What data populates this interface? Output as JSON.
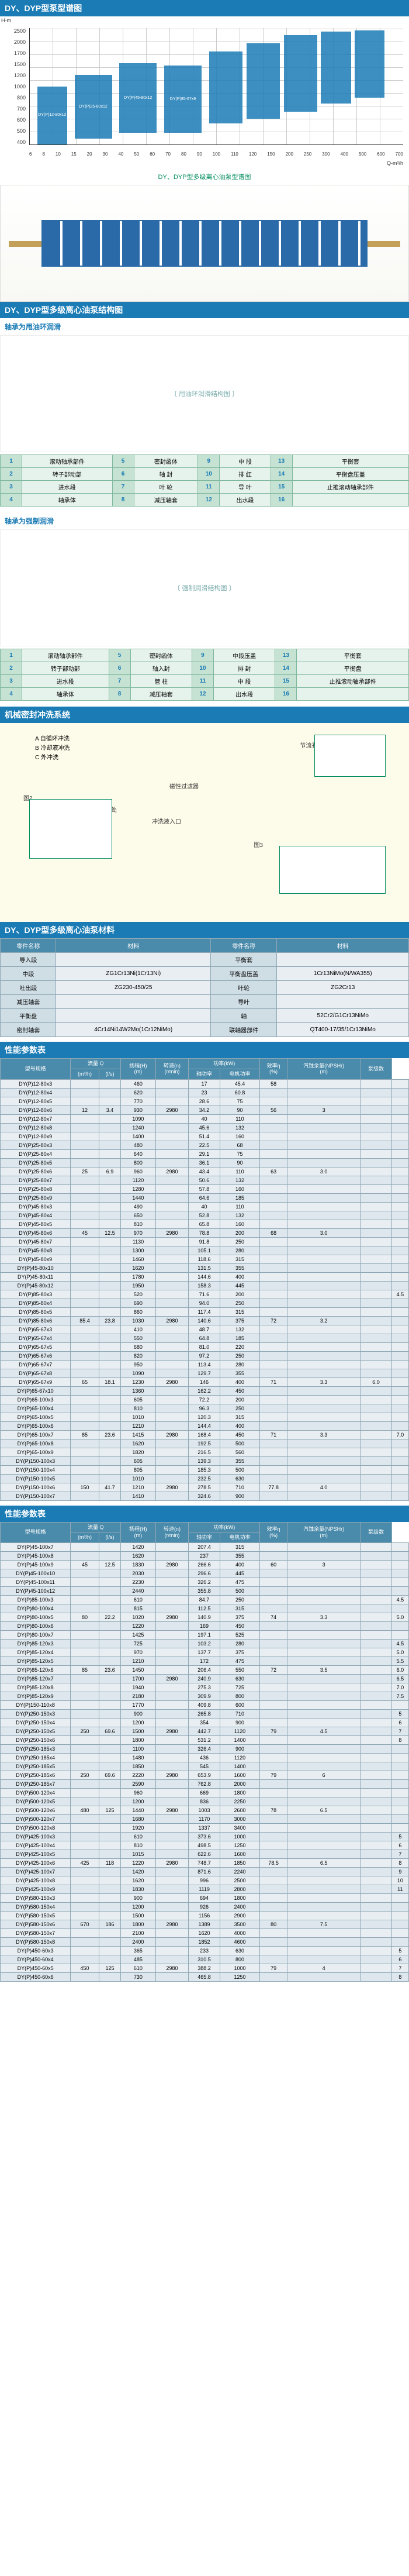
{
  "sections": {
    "chart_title": "DY、DYP型泵型谱图",
    "chart_caption": "DY、DYP型多级离心油泵型谱图",
    "structure_title": "DY、DYP型多级离心油泵结构图",
    "sub_oilring": "轴承为甩油环润滑",
    "sub_force": "轴承为强制润滑",
    "flush_title": "机械密封冲洗系统",
    "material_title": "DY、DYP型多级离心油泵材料",
    "perf_title": "性能参数表"
  },
  "chart": {
    "y_label": "H-m",
    "x_label": "Q-m³/h",
    "y_ticks": [
      "400",
      "500",
      "600",
      "700",
      "800",
      "1000",
      "1200",
      "1500",
      "1700",
      "2000",
      "2500"
    ],
    "x_ticks": [
      "6",
      "8",
      "10",
      "15",
      "20",
      "30",
      "40",
      "50",
      "60",
      "70",
      "80",
      "90",
      "100",
      "110",
      "120",
      "150",
      "200",
      "250",
      "300",
      "400",
      "500",
      "600",
      "700"
    ],
    "blocks": [
      {
        "label": "DY(P)12-80x12",
        "l": 2,
        "w": 8,
        "b": 0,
        "h": 50
      },
      {
        "label": "DY(P)25-80x12",
        "l": 12,
        "w": 10,
        "b": 5,
        "h": 55
      },
      {
        "label": "DY(P)45-80x12",
        "l": 24,
        "w": 10,
        "b": 10,
        "h": 60
      },
      {
        "label": "DY(P)85-67x9",
        "l": 36,
        "w": 10,
        "b": 10,
        "h": 58
      },
      {
        "label": "",
        "l": 48,
        "w": 9,
        "b": 18,
        "h": 62
      },
      {
        "label": "",
        "l": 58,
        "w": 9,
        "b": 22,
        "h": 65
      },
      {
        "label": "",
        "l": 68,
        "w": 9,
        "b": 28,
        "h": 66
      },
      {
        "label": "",
        "l": 78,
        "w": 8,
        "b": 35,
        "h": 62
      },
      {
        "label": "",
        "l": 87,
        "w": 8,
        "b": 40,
        "h": 58
      }
    ]
  },
  "parts_oilring": [
    [
      "1",
      "滚动轴承部件",
      "5",
      "密封函体",
      "9",
      "中 段",
      "13",
      "平衡套"
    ],
    [
      "2",
      "转子部动部",
      "6",
      "轴 封",
      "10",
      "排 红",
      "14",
      "平衡盘压盖"
    ],
    [
      "3",
      "进水段",
      "7",
      "叶 轮",
      "11",
      "导 叶",
      "15",
      "止推滚动轴承部件"
    ],
    [
      "4",
      "轴承体",
      "8",
      "减压轴套",
      "12",
      "出水段",
      "16",
      ""
    ]
  ],
  "parts_force": [
    [
      "1",
      "滚动轴承部件",
      "5",
      "密封函体",
      "9",
      "中段压盖",
      "13",
      "平衡套"
    ],
    [
      "2",
      "转子部动部",
      "6",
      "轴入封",
      "10",
      "排 封",
      "14",
      "平衡盘"
    ],
    [
      "3",
      "进水段",
      "7",
      "管 柱",
      "11",
      "中 段",
      "15",
      "止推滚动轴承部件"
    ],
    [
      "4",
      "轴承体",
      "8",
      "减压轴套",
      "12",
      "出水段",
      "16",
      ""
    ]
  ],
  "flush_legend": [
    "A  自循环冲洗",
    "B  冷却液冲洗",
    "C  外冲洗"
  ],
  "flush_labels": {
    "fig1": "图1",
    "fig2": "图2",
    "fig3": "图3",
    "flange": "冲洗液入口第一级叶轮进口处",
    "filter": "磁性过滤器",
    "cooler": "冷却器",
    "inlet": "冲洗液入口",
    "orifice": "节流孔板(自循环冲洗系统用)"
  },
  "materials": {
    "header": [
      "零件名称",
      "材料",
      "零件名称",
      "材料"
    ],
    "rows": [
      [
        "导入段",
        "",
        "平衡套",
        ""
      ],
      [
        "中段",
        "ZG1Cr13Ni(1Cr13Ni)",
        "平衡盘压盖",
        "1Cr13NiMo(N/WA355)"
      ],
      [
        "吐出段",
        "ZG230-450/25",
        "叶轮",
        "ZG2Cr13"
      ],
      [
        "减压轴套",
        "",
        "导叶",
        ""
      ],
      [
        "平衡盘",
        "",
        "轴",
        "52Cr2/G1Cr13NiMo"
      ],
      [
        "密封轴套",
        "4Cr14Ni14W2Mo(1Cr12NiMo)",
        "联轴器部件",
        "QT400-17/35/1Cr13NiMo"
      ]
    ]
  },
  "perf_headers": {
    "model": "型号规格",
    "flow": "流量 Q",
    "flow_u1": "(m³/h)",
    "flow_u2": "(l/s)",
    "lift": "扬程(H)",
    "lift_u": "(m)",
    "speed": "转速(n)",
    "speed_u": "(r/min)",
    "power": "功率(kW)",
    "power_a": "轴功率",
    "power_m": "电机功率",
    "eff": "效率η",
    "eff_u": "(%)",
    "npsh": "汽蚀余量(NPSHr)",
    "npsh_u": "(m)",
    "stages": "泵级数"
  },
  "perf1": [
    [
      "DY(P)12-80x3",
      "",
      "",
      "460",
      "",
      "17",
      "45.4",
      "58",
      "",
      "",
      ""
    ],
    [
      "DY(P)12-80x4",
      "",
      "",
      "620",
      "",
      "23",
      "60.8",
      "",
      "",
      "",
      ""
    ],
    [
      "DY(P)12-80x5",
      "",
      "",
      "770",
      "",
      "28.6",
      "75",
      "",
      "",
      "",
      ""
    ],
    [
      "DY(P)12-80x6",
      "12",
      "3.4",
      "930",
      "2980",
      "34.2",
      "90",
      "56",
      "3",
      "",
      ""
    ],
    [
      "DY(P)12-80x7",
      "",
      "",
      "1090",
      "",
      "40",
      "110",
      "",
      "",
      "",
      ""
    ],
    [
      "DY(P)12-80x8",
      "",
      "",
      "1240",
      "",
      "45.6",
      "132",
      "",
      "",
      "",
      ""
    ],
    [
      "DY(P)12-80x9",
      "",
      "",
      "1400",
      "",
      "51.4",
      "160",
      "",
      "",
      "",
      ""
    ],
    [
      "DY(P)25-80x3",
      "",
      "",
      "480",
      "",
      "22.5",
      "68",
      "",
      "",
      "",
      ""
    ],
    [
      "DY(P)25-80x4",
      "",
      "",
      "640",
      "",
      "29.1",
      "75",
      "",
      "",
      "",
      ""
    ],
    [
      "DY(P)25-80x5",
      "",
      "",
      "800",
      "",
      "36.1",
      "90",
      "",
      "",
      "",
      ""
    ],
    [
      "DY(P)25-80x6",
      "25",
      "6.9",
      "960",
      "2980",
      "43.4",
      "110",
      "63",
      "3.0",
      "",
      ""
    ],
    [
      "DY(P)25-80x7",
      "",
      "",
      "1120",
      "",
      "50.6",
      "132",
      "",
      "",
      "",
      ""
    ],
    [
      "DY(P)25-80x8",
      "",
      "",
      "1280",
      "",
      "57.8",
      "160",
      "",
      "",
      "",
      ""
    ],
    [
      "DY(P)25-80x9",
      "",
      "",
      "1440",
      "",
      "64.6",
      "185",
      "",
      "",
      "",
      ""
    ],
    [
      "DY(P)45-80x3",
      "",
      "",
      "490",
      "",
      "40",
      "110",
      "",
      "",
      "",
      ""
    ],
    [
      "DY(P)45-80x4",
      "",
      "",
      "650",
      "",
      "52.8",
      "132",
      "",
      "",
      "",
      ""
    ],
    [
      "DY(P)45-80x5",
      "",
      "",
      "810",
      "",
      "65.8",
      "160",
      "",
      "",
      "",
      ""
    ],
    [
      "DY(P)45-80x6",
      "45",
      "12.5",
      "970",
      "2980",
      "78.8",
      "200",
      "68",
      "3.0",
      "",
      ""
    ],
    [
      "DY(P)45-80x7",
      "",
      "",
      "1130",
      "",
      "91.8",
      "250",
      "",
      "",
      "",
      ""
    ],
    [
      "DY(P)45-80x8",
      "",
      "",
      "1300",
      "",
      "105.1",
      "280",
      "",
      "",
      "",
      ""
    ],
    [
      "DY(P)45-80x9",
      "",
      "",
      "1460",
      "",
      "118.6",
      "315",
      "",
      "",
      "",
      ""
    ],
    [
      "DY(P)45-80x10",
      "",
      "",
      "1620",
      "",
      "131.5",
      "355",
      "",
      "",
      "",
      ""
    ],
    [
      "DY(P)45-80x11",
      "",
      "",
      "1780",
      "",
      "144.6",
      "400",
      "",
      "",
      "",
      ""
    ],
    [
      "DY(P)45-80x12",
      "",
      "",
      "1950",
      "",
      "158.3",
      "445",
      "",
      "",
      "",
      ""
    ],
    [
      "DY(P)85-80x3",
      "",
      "",
      "520",
      "",
      "71.6",
      "200",
      "",
      "",
      "",
      "4.5"
    ],
    [
      "DY(P)85-80x4",
      "",
      "",
      "690",
      "",
      "94.0",
      "250",
      "",
      "",
      "",
      ""
    ],
    [
      "DY(P)85-80x5",
      "",
      "",
      "860",
      "",
      "117.4",
      "315",
      "",
      "",
      "",
      ""
    ],
    [
      "DY(P)85-80x6",
      "85.4",
      "23.8",
      "1030",
      "2980",
      "140.6",
      "375",
      "72",
      "3.2",
      "",
      ""
    ],
    [
      "DY(P)65-67x3",
      "",
      "",
      "410",
      "",
      "48.7",
      "132",
      "",
      "",
      "",
      ""
    ],
    [
      "DY(P)65-67x4",
      "",
      "",
      "550",
      "",
      "64.8",
      "185",
      "",
      "",
      "",
      ""
    ],
    [
      "DY(P)65-67x5",
      "",
      "",
      "680",
      "",
      "81.0",
      "220",
      "",
      "",
      "",
      ""
    ],
    [
      "DY(P)65-67x6",
      "",
      "",
      "820",
      "",
      "97.2",
      "250",
      "",
      "",
      "",
      ""
    ],
    [
      "DY(P)65-67x7",
      "",
      "",
      "950",
      "",
      "113.4",
      "280",
      "",
      "",
      "",
      ""
    ],
    [
      "DY(P)65-67x8",
      "",
      "",
      "1090",
      "",
      "129.7",
      "355",
      "",
      "",
      "",
      ""
    ],
    [
      "DY(P)65-67x9",
      "65",
      "18.1",
      "1230",
      "2980",
      "146",
      "400",
      "71",
      "3.3",
      "6.0",
      ""
    ],
    [
      "DY(P)65-67x10",
      "",
      "",
      "1360",
      "",
      "162.2",
      "450",
      "",
      "",
      "",
      ""
    ],
    [
      "DY(P)65-100x3",
      "",
      "",
      "605",
      "",
      "72.2",
      "200",
      "",
      "",
      "",
      ""
    ],
    [
      "DY(P)65-100x4",
      "",
      "",
      "810",
      "",
      "96.3",
      "250",
      "",
      "",
      "",
      ""
    ],
    [
      "DY(P)65-100x5",
      "",
      "",
      "1010",
      "",
      "120.3",
      "315",
      "",
      "",
      "",
      ""
    ],
    [
      "DY(P)65-100x6",
      "",
      "",
      "1210",
      "",
      "144.4",
      "400",
      "",
      "",
      "",
      ""
    ],
    [
      "DY(P)65-100x7",
      "85",
      "23.6",
      "1415",
      "2980",
      "168.4",
      "450",
      "71",
      "3.3",
      "",
      "7.0"
    ],
    [
      "DY(P)65-100x8",
      "",
      "",
      "1620",
      "",
      "192.5",
      "500",
      "",
      "",
      "",
      ""
    ],
    [
      "DY(P)65-100x9",
      "",
      "",
      "1820",
      "",
      "216.5",
      "560",
      "",
      "",
      "",
      ""
    ],
    [
      "DY(P)150-100x3",
      "",
      "",
      "605",
      "",
      "139.3",
      "355",
      "",
      "",
      "",
      ""
    ],
    [
      "DY(P)150-100x4",
      "",
      "",
      "805",
      "",
      "185.3",
      "500",
      "",
      "",
      "",
      ""
    ],
    [
      "DY(P)150-100x5",
      "",
      "",
      "1010",
      "",
      "232.5",
      "630",
      "",
      "",
      "",
      ""
    ],
    [
      "DY(P)150-100x6",
      "150",
      "41.7",
      "1210",
      "2980",
      "278.5",
      "710",
      "77.8",
      "4.0",
      "",
      ""
    ],
    [
      "DY(P)150-100x7",
      "",
      "",
      "1410",
      "",
      "324.6",
      "900",
      "",
      "",
      "",
      ""
    ]
  ],
  "perf2": [
    [
      "DY(P)45-100x7",
      "",
      "",
      "1420",
      "",
      "207.4",
      "315",
      "",
      "",
      "",
      ""
    ],
    [
      "DY(P)45-100x8",
      "",
      "",
      "1620",
      "",
      "237",
      "355",
      "",
      "",
      "",
      ""
    ],
    [
      "DY(P)45-100x9",
      "45",
      "12.5",
      "1830",
      "2980",
      "266.6",
      "400",
      "60",
      "3",
      "",
      ""
    ],
    [
      "DY(P)45-100x10",
      "",
      "",
      "2030",
      "",
      "296.6",
      "445",
      "",
      "",
      "",
      ""
    ],
    [
      "DY(P)45-100x11",
      "",
      "",
      "2230",
      "",
      "326.2",
      "475",
      "",
      "",
      "",
      ""
    ],
    [
      "DY(P)45-100x12",
      "",
      "",
      "2440",
      "",
      "355.8",
      "500",
      "",
      "",
      "",
      ""
    ],
    [
      "DY(P)85-100x3",
      "",
      "",
      "610",
      "",
      "84.7",
      "250",
      "",
      "",
      "",
      "4.5"
    ],
    [
      "DY(P)80-100x4",
      "",
      "",
      "815",
      "",
      "112.5",
      "315",
      "",
      "",
      "",
      ""
    ],
    [
      "DY(P)80-100x5",
      "80",
      "22.2",
      "1020",
      "2980",
      "140.9",
      "375",
      "74",
      "3.3",
      "",
      "5.0"
    ],
    [
      "DY(P)80-100x6",
      "",
      "",
      "1220",
      "",
      "169",
      "450",
      "",
      "",
      "",
      ""
    ],
    [
      "DY(P)80-100x7",
      "",
      "",
      "1425",
      "",
      "197.1",
      "525",
      "",
      "",
      "",
      ""
    ],
    [
      "DY(P)85-120x3",
      "",
      "",
      "725",
      "",
      "103.2",
      "280",
      "",
      "",
      "",
      "4.5"
    ],
    [
      "DY(P)85-120x4",
      "",
      "",
      "970",
      "",
      "137.7",
      "375",
      "",
      "",
      "",
      "5.0"
    ],
    [
      "DY(P)85-120x5",
      "",
      "",
      "1210",
      "",
      "172",
      "475",
      "",
      "",
      "",
      "5.5"
    ],
    [
      "DY(P)85-120x6",
      "85",
      "23.6",
      "1450",
      "",
      "206.4",
      "550",
      "72",
      "3.5",
      "",
      "6.0"
    ],
    [
      "DY(P)85-120x7",
      "",
      "",
      "1700",
      "2980",
      "240.9",
      "630",
      "",
      "",
      "",
      "6.5"
    ],
    [
      "DY(P)85-120x8",
      "",
      "",
      "1940",
      "",
      "275.3",
      "725",
      "",
      "",
      "",
      "7.0"
    ],
    [
      "DY(P)85-120x9",
      "",
      "",
      "2180",
      "",
      "309.9",
      "800",
      "",
      "",
      "",
      "7.5"
    ],
    [
      "DY(P)150-110x8",
      "",
      "",
      "1770",
      "",
      "409.8",
      "600",
      "",
      "",
      "",
      ""
    ],
    [
      "DY(P)250-150x3",
      "",
      "",
      "900",
      "",
      "265.8",
      "710",
      "",
      "",
      "",
      "5"
    ],
    [
      "DY(P)250-150x4",
      "",
      "",
      "1200",
      "",
      "354",
      "900",
      "",
      "",
      "",
      "6"
    ],
    [
      "DY(P)250-150x5",
      "250",
      "69.6",
      "1500",
      "2980",
      "442.7",
      "1120",
      "79",
      "4.5",
      "",
      "7"
    ],
    [
      "DY(P)250-150x6",
      "",
      "",
      "1800",
      "",
      "531.2",
      "1400",
      "",
      "",
      "",
      "8"
    ],
    [
      "DY(P)250-185x3",
      "",
      "",
      "1100",
      "",
      "326.4",
      "900",
      "",
      "",
      "",
      ""
    ],
    [
      "DY(P)250-185x4",
      "",
      "",
      "1480",
      "",
      "436",
      "1120",
      "",
      "",
      "",
      ""
    ],
    [
      "DY(P)250-185x5",
      "",
      "",
      "1850",
      "",
      "545",
      "1400",
      "",
      "",
      "",
      ""
    ],
    [
      "DY(P)250-185x6",
      "250",
      "69.6",
      "2220",
      "2980",
      "653.9",
      "1600",
      "79",
      "6",
      "",
      ""
    ],
    [
      "DY(P)250-185x7",
      "",
      "",
      "2590",
      "",
      "762.8",
      "2000",
      "",
      "",
      "",
      ""
    ],
    [
      "DY(P)500-120x4",
      "",
      "",
      "960",
      "",
      "669",
      "1800",
      "",
      "",
      "",
      ""
    ],
    [
      "DY(P)500-120x5",
      "",
      "",
      "1200",
      "",
      "836",
      "2250",
      "",
      "",
      "",
      ""
    ],
    [
      "DY(P)500-120x6",
      "480",
      "125",
      "1440",
      "2980",
      "1003",
      "2600",
      "78",
      "6.5",
      "",
      ""
    ],
    [
      "DY(P)500-120x7",
      "",
      "",
      "1680",
      "",
      "1170",
      "3000",
      "",
      "",
      "",
      ""
    ],
    [
      "DY(P)500-120x8",
      "",
      "",
      "1920",
      "",
      "1337",
      "3400",
      "",
      "",
      "",
      ""
    ],
    [
      "DY(P)425-100x3",
      "",
      "",
      "610",
      "",
      "373.6",
      "1000",
      "",
      "",
      "",
      "5"
    ],
    [
      "DY(P)425-100x4",
      "",
      "",
      "810",
      "",
      "498.5",
      "1250",
      "",
      "",
      "",
      "6"
    ],
    [
      "DY(P)425-100x5",
      "",
      "",
      "1015",
      "",
      "622.6",
      "1600",
      "",
      "",
      "",
      "7"
    ],
    [
      "DY(P)425-100x6",
      "425",
      "118",
      "1220",
      "2980",
      "748.7",
      "1850",
      "78.5",
      "6.5",
      "",
      "8"
    ],
    [
      "DY(P)425-100x7",
      "",
      "",
      "1420",
      "",
      "871.6",
      "2240",
      "",
      "",
      "",
      "9"
    ],
    [
      "DY(P)425-100x8",
      "",
      "",
      "1620",
      "",
      "996",
      "2500",
      "",
      "",
      "",
      "10"
    ],
    [
      "DY(P)425-100x9",
      "",
      "",
      "1830",
      "",
      "1119",
      "2800",
      "",
      "",
      "",
      "11"
    ],
    [
      "DY(P)580-150x3",
      "",
      "",
      "900",
      "",
      "694",
      "1800",
      "",
      "",
      "",
      ""
    ],
    [
      "DY(P)580-150x4",
      "",
      "",
      "1200",
      "",
      "926",
      "2400",
      "",
      "",
      "",
      ""
    ],
    [
      "DY(P)580-150x5",
      "",
      "",
      "1500",
      "",
      "1156",
      "2900",
      "",
      "",
      "",
      ""
    ],
    [
      "DY(P)580-150x6",
      "670",
      "186",
      "1800",
      "2980",
      "1389",
      "3500",
      "80",
      "7.5",
      "",
      ""
    ],
    [
      "DY(P)580-150x7",
      "",
      "",
      "2100",
      "",
      "1620",
      "4000",
      "",
      "",
      "",
      ""
    ],
    [
      "DY(P)580-150x8",
      "",
      "",
      "2400",
      "",
      "1852",
      "4600",
      "",
      "",
      "",
      ""
    ],
    [
      "DY(P)450-60x3",
      "",
      "",
      "365",
      "",
      "233",
      "630",
      "",
      "",
      "",
      "5"
    ],
    [
      "DY(P)450-60x4",
      "",
      "",
      "485",
      "",
      "310.5",
      "800",
      "",
      "",
      "",
      "6"
    ],
    [
      "DY(P)450-60x5",
      "450",
      "125",
      "610",
      "2980",
      "388.2",
      "1000",
      "79",
      "4",
      "",
      "7"
    ],
    [
      "DY(P)450-60x6",
      "",
      "",
      "730",
      "",
      "465.8",
      "1250",
      "",
      "",
      "",
      "8"
    ]
  ]
}
